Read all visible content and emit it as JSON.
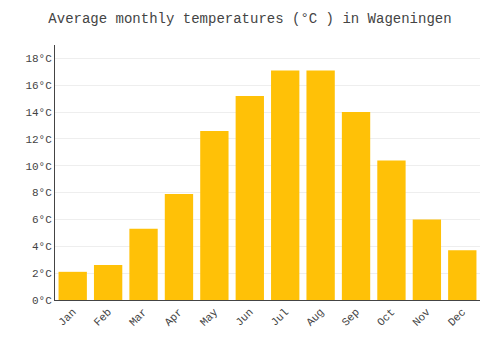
{
  "chart_data": {
    "type": "bar",
    "title": "Average monthly temperatures (°C ) in Wageningen",
    "categories": [
      "Jan",
      "Feb",
      "Mar",
      "Apr",
      "May",
      "Jun",
      "Jul",
      "Aug",
      "Sep",
      "Oct",
      "Nov",
      "Dec"
    ],
    "values": [
      2.1,
      2.6,
      5.3,
      7.9,
      12.6,
      15.2,
      17.1,
      17.1,
      14.0,
      10.4,
      6.0,
      3.7
    ],
    "color": "#FFC107",
    "ylim": [
      0,
      19
    ],
    "yticks": [
      {
        "value": 0,
        "label": "0°C"
      },
      {
        "value": 2,
        "label": "2°C"
      },
      {
        "value": 4,
        "label": "4°C"
      },
      {
        "value": 6,
        "label": "6°C"
      },
      {
        "value": 8,
        "label": "8°C"
      },
      {
        "value": 10,
        "label": "10°C"
      },
      {
        "value": 12,
        "label": "12°C"
      },
      {
        "value": 14,
        "label": "14°C"
      },
      {
        "value": 16,
        "label": "16°C"
      },
      {
        "value": 18,
        "label": "18°C"
      }
    ],
    "grid": true
  }
}
